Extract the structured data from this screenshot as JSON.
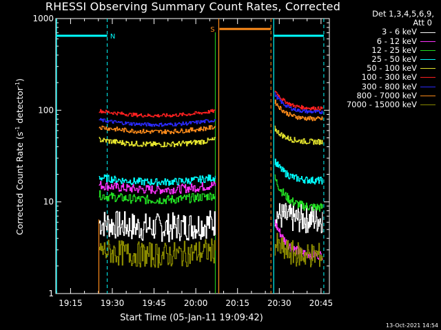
{
  "chart_data": {
    "type": "line",
    "title": "RHESSI Observing Summary Count Rates, Corrected",
    "xlabel": "Start Time (05-Jan-11 19:09:42)",
    "ylabel_main": "Corrected Count Rate (s",
    "ylabel_sup1": "-1",
    "ylabel_mid": " detector",
    "ylabel_sup2": "-1",
    "ylabel_end": ")",
    "yscale": "log",
    "ylim": [
      1,
      1000
    ],
    "xlim": [
      "19:09:42",
      "20:48:00"
    ],
    "x_tick_labels": [
      "19:15",
      "19:30",
      "19:45",
      "20:00",
      "20:15",
      "20:30",
      "20:45"
    ],
    "y_tick_labels": [
      "1",
      "10",
      "100",
      "1000"
    ],
    "legend_header_1": "Det 1,3,4,5,6,9,",
    "legend_header_2": "Att 0",
    "legend_position": "right",
    "segments": [
      {
        "start": "19:25:10",
        "end": "20:07:00"
      },
      {
        "start": "20:28:00",
        "end": "20:46:00"
      }
    ],
    "series": [
      {
        "name": "3 - 6 keV",
        "color": "#ffffff",
        "seg1": 5.6,
        "seg2": 6.5,
        "seg2_start": 7.5,
        "noise": 0.16
      },
      {
        "name": "6 - 12 keV",
        "color": "#ff33ff",
        "seg1": 14.5,
        "seg2": 2.6,
        "seg2_start": 6.0,
        "noise": 0.05
      },
      {
        "name": "12 - 25 keV",
        "color": "#22dd22",
        "seg1": 11.2,
        "seg2": 8.6,
        "seg2_start": 18.0,
        "noise": 0.05
      },
      {
        "name": "25 - 50 keV",
        "color": "#00ffff",
        "seg1": 17.5,
        "seg2": 17.0,
        "seg2_start": 28.0,
        "noise": 0.04
      },
      {
        "name": "50 - 100 keV",
        "color": "#e6e62e",
        "seg1": 45.0,
        "seg2": 45.0,
        "seg2_start": 63.0,
        "noise": 0.03
      },
      {
        "name": "100 - 300 keV",
        "color": "#ff2020",
        "seg1": 93.0,
        "seg2": 104.0,
        "seg2_start": 165.0,
        "noise": 0.02
      },
      {
        "name": "300 - 800 keV",
        "color": "#2a2aff",
        "seg1": 74.0,
        "seg2": 95.0,
        "seg2_start": 150.0,
        "noise": 0.02
      },
      {
        "name": "800 - 7000 keV",
        "color": "#ff8c1a",
        "seg1": 62.0,
        "seg2": 80.0,
        "seg2_start": 125.0,
        "noise": 0.025
      },
      {
        "name": "7000 - 15000 keV",
        "color": "#8a8a00",
        "seg1": 2.8,
        "seg2": 2.6,
        "seg2_start": 3.5,
        "noise": 0.14
      }
    ],
    "annotations": [
      {
        "text": "N",
        "color": "#00ffff",
        "bar_start": "19:09:42",
        "bar_end": "19:28:10",
        "bar_value": 650
      },
      {
        "text": "S",
        "color": "#ff8c1a",
        "bar_start": "20:08:30",
        "bar_end": "20:27:00",
        "bar_value": 770
      },
      {
        "text": "",
        "color": "#00ffff",
        "bar_start": "20:28:00",
        "bar_end": "20:46:00",
        "bar_value": 650
      }
    ]
  },
  "footer": "13-Oct-2021 14:54"
}
